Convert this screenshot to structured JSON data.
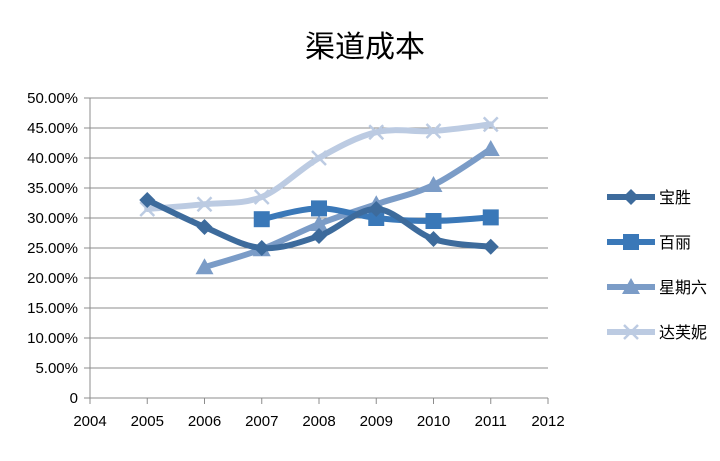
{
  "chart_data": {
    "type": "line",
    "title": "渠道成本",
    "xlabel": "",
    "ylabel": "",
    "x_ticks": [
      "2004",
      "2005",
      "2006",
      "2007",
      "2008",
      "2009",
      "2010",
      "2011",
      "2012"
    ],
    "y_ticks": [
      "0",
      "5.00%",
      "10.00%",
      "15.00%",
      "20.00%",
      "25.00%",
      "30.00%",
      "35.00%",
      "40.00%",
      "45.00%",
      "50.00%"
    ],
    "xlim": [
      2004,
      2012
    ],
    "ylim": [
      0,
      0.5
    ],
    "grid": "horizontal",
    "legend_position": "right",
    "series": [
      {
        "name": "宝胜",
        "color": "#3d6b9c",
        "marker": "diamond",
        "x": [
          2005,
          2006,
          2007,
          2008,
          2009,
          2010,
          2011
        ],
        "values": [
          0.33,
          0.285,
          0.25,
          0.27,
          0.315,
          0.265,
          0.252
        ]
      },
      {
        "name": "百丽",
        "color": "#3a78b8",
        "marker": "square",
        "x": [
          2007,
          2008,
          2009,
          2010,
          2011
        ],
        "values": [
          0.298,
          0.316,
          0.3,
          0.295,
          0.301
        ]
      },
      {
        "name": "星期六",
        "color": "#7b9cc7",
        "marker": "triangle",
        "x": [
          2006,
          2007,
          2008,
          2009,
          2010,
          2011
        ],
        "values": [
          0.218,
          0.248,
          0.29,
          0.323,
          0.355,
          0.415
        ]
      },
      {
        "name": "达芙妮",
        "color": "#bccbe2",
        "marker": "x",
        "x": [
          2005,
          2006,
          2007,
          2008,
          2009,
          2010,
          2011
        ],
        "values": [
          0.315,
          0.323,
          0.335,
          0.4,
          0.443,
          0.445,
          0.456
        ]
      }
    ]
  }
}
